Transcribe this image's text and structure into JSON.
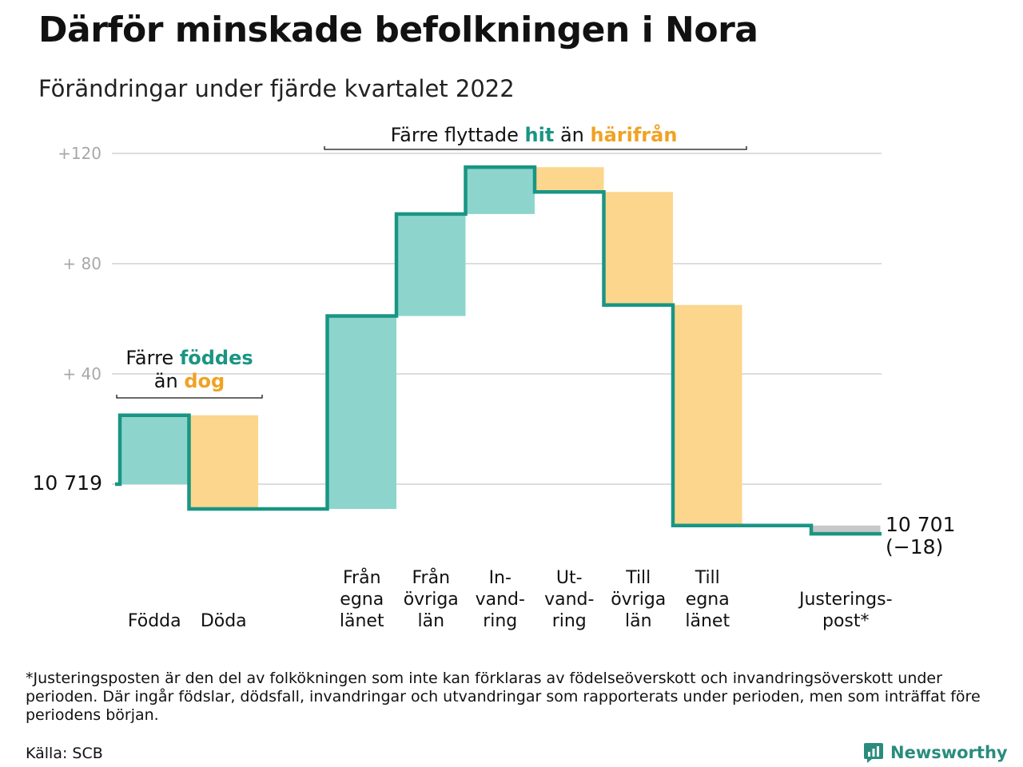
{
  "title": "Därför minskade befolkningen i Nora",
  "subtitle": "Förändringar under fjärde kvartalet 2022",
  "colors": {
    "increase": "#8dd5cc",
    "decrease": "#fbd68c",
    "adjustment": "#c8c8c8",
    "line": "#1a9584",
    "accent_teal": "#1a9584",
    "accent_orange": "#f0a223",
    "grid": "#dddddd"
  },
  "chart_data": {
    "type": "waterfall",
    "start_value": 10719,
    "start_label": "10 719",
    "end_value": 10701,
    "end_label": "10 701",
    "end_change_label": "(−18)",
    "ylim": [
      -19,
      124
    ],
    "y_ticks": [
      {
        "value": 40,
        "label": "+ 40"
      },
      {
        "value": 80,
        "label": "+ 80"
      },
      {
        "value": 120,
        "label": "+120"
      }
    ],
    "steps": [
      {
        "label_lines": [
          "Födda"
        ],
        "change": 25,
        "kind": "increase"
      },
      {
        "label_lines": [
          "Döda"
        ],
        "change": -34,
        "kind": "decrease"
      },
      {
        "label_lines": [],
        "change": 0,
        "kind": "gap"
      },
      {
        "label_lines": [
          "Från",
          "egna",
          "länet"
        ],
        "change": 70,
        "kind": "increase"
      },
      {
        "label_lines": [
          "Från",
          "övriga",
          "län"
        ],
        "change": 37,
        "kind": "increase"
      },
      {
        "label_lines": [
          "In-",
          "vand-",
          "ring"
        ],
        "change": 17,
        "kind": "increase"
      },
      {
        "label_lines": [
          "Ut-",
          "vand-",
          "ring"
        ],
        "change": -9,
        "kind": "decrease"
      },
      {
        "label_lines": [
          "Till",
          "övriga",
          "län"
        ],
        "change": -41,
        "kind": "decrease"
      },
      {
        "label_lines": [
          "Till",
          "egna",
          "länet"
        ],
        "change": -80,
        "kind": "decrease"
      },
      {
        "label_lines": [],
        "change": 0,
        "kind": "gap"
      },
      {
        "label_lines": [
          "Justerings-",
          "post*"
        ],
        "change": -3,
        "kind": "adjustment"
      }
    ],
    "annotations": [
      {
        "parts": [
          {
            "text": "Färre "
          },
          {
            "text": "föddes",
            "color": "teal"
          }
        ],
        "parts2": [
          {
            "text": "än "
          },
          {
            "text": "dog",
            "color": "orange"
          }
        ]
      },
      {
        "parts": [
          {
            "text": "Färre flyttade "
          },
          {
            "text": "hit",
            "color": "teal"
          },
          {
            "text": " än "
          },
          {
            "text": "härifrån",
            "color": "orange"
          }
        ]
      }
    ]
  },
  "footnote": "*Justeringsposten är den del av folkökningen som inte kan förklaras av födelseöverskott och invandringsöverskott under perioden. Där ingår födslar, dödsfall, invandringar och utvandringar som rapporterats under perioden, men som inträffat före periodens början.",
  "source": "Källa: SCB",
  "brand": {
    "name": "Newsworthy",
    "icon": "newsworthy-logo-icon"
  }
}
